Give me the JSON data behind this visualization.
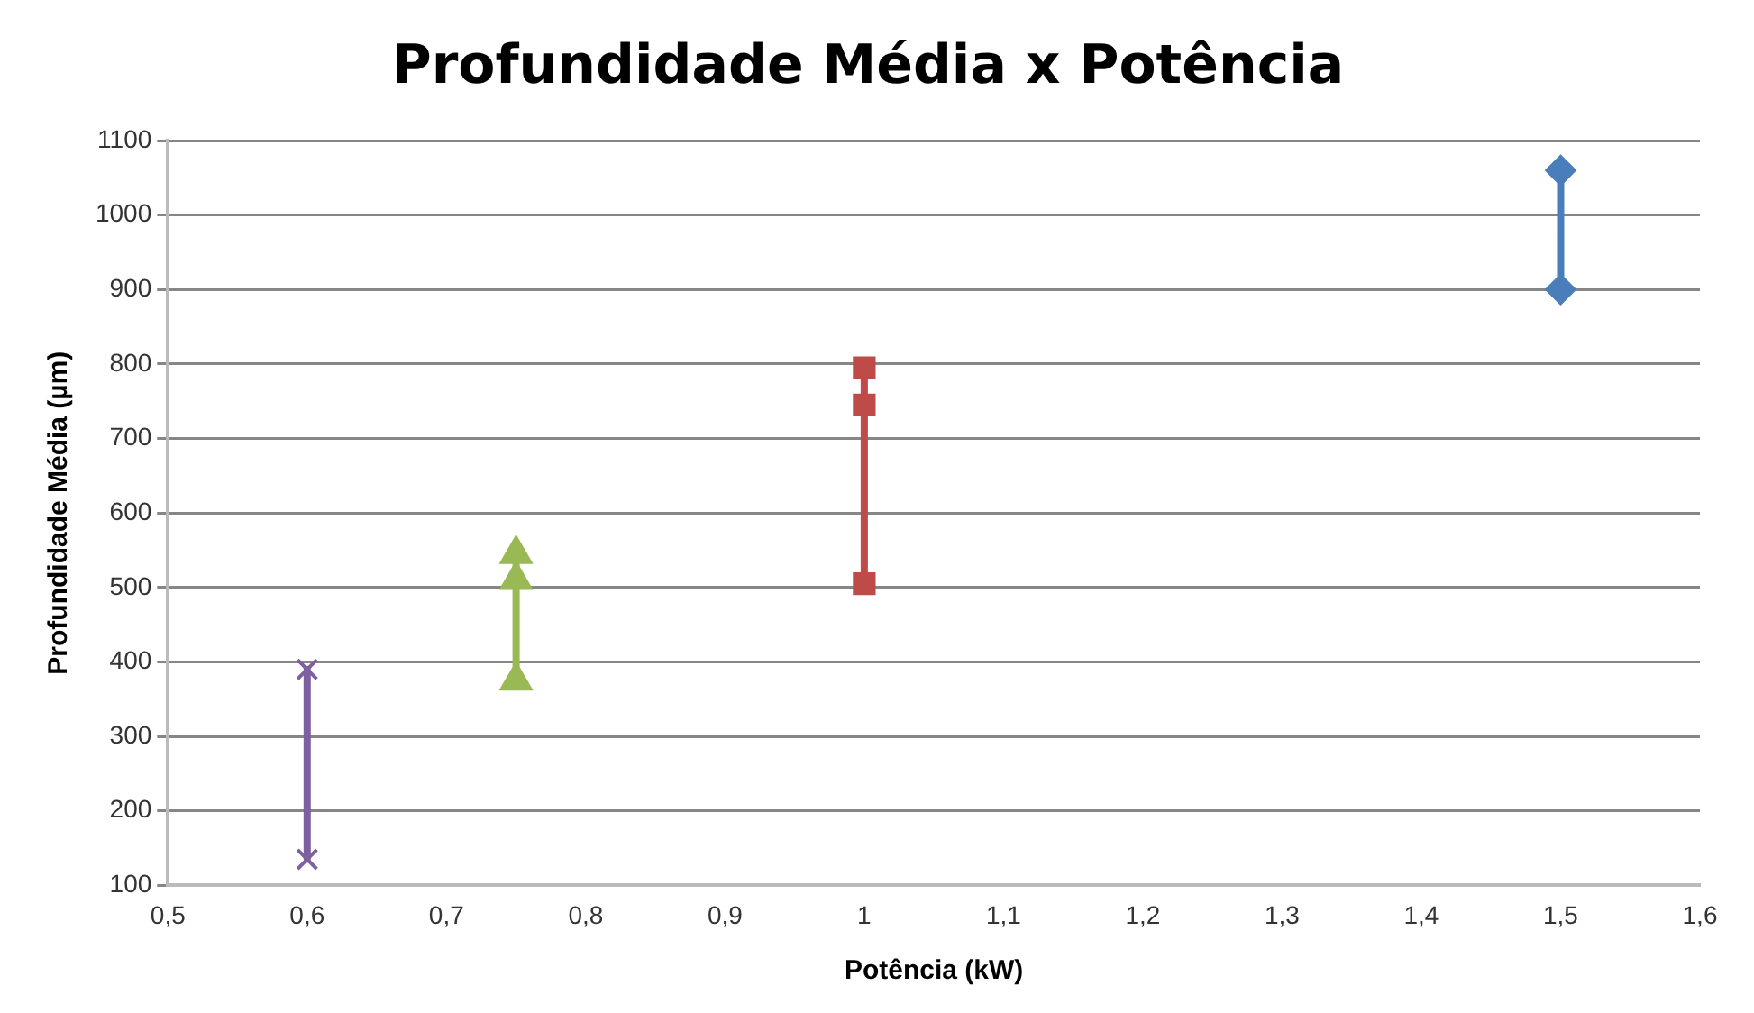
{
  "chart_data": {
    "type": "line",
    "title": "Profundidade Média x Potência",
    "xlabel": "Potência (kW)",
    "ylabel": "Profundidade Média (µm)",
    "xlim": [
      0.5,
      1.6
    ],
    "xticks": [
      {
        "value": 0.5,
        "label": "0,5"
      },
      {
        "value": 0.6,
        "label": "0,6"
      },
      {
        "value": 0.7,
        "label": "0,7"
      },
      {
        "value": 0.8,
        "label": "0,8"
      },
      {
        "value": 0.9,
        "label": "0,9"
      },
      1,
      {
        "value": 1.1,
        "label": "1,1"
      },
      {
        "value": 1.2,
        "label": "1,2"
      },
      {
        "value": 1.3,
        "label": "1,3"
      },
      {
        "value": 1.4,
        "label": "1,4"
      },
      {
        "value": 1.5,
        "label": "1,5"
      },
      {
        "value": 1.6,
        "label": "1,6"
      }
    ],
    "ylim": [
      100,
      1100
    ],
    "yticks": [
      100,
      200,
      300,
      400,
      500,
      600,
      700,
      800,
      900,
      1000,
      1100
    ],
    "grid": "y",
    "legend": false,
    "series": [
      {
        "color": "#4a7ebb",
        "marker": "diamond",
        "x": [
          1.5,
          1.5
        ],
        "values": [
          1060,
          900
        ]
      },
      {
        "color": "#be4b48",
        "marker": "square",
        "x": [
          1,
          1,
          1
        ],
        "values": [
          795,
          745,
          505
        ]
      },
      {
        "color": "#98b954",
        "marker": "triangle",
        "x": [
          0.75,
          0.75,
          0.75
        ],
        "values": [
          545,
          510,
          375
        ]
      },
      {
        "color": "#7d60a0",
        "marker": "cross",
        "x": [
          0.6,
          0.6
        ],
        "values": [
          390,
          135
        ]
      }
    ]
  }
}
